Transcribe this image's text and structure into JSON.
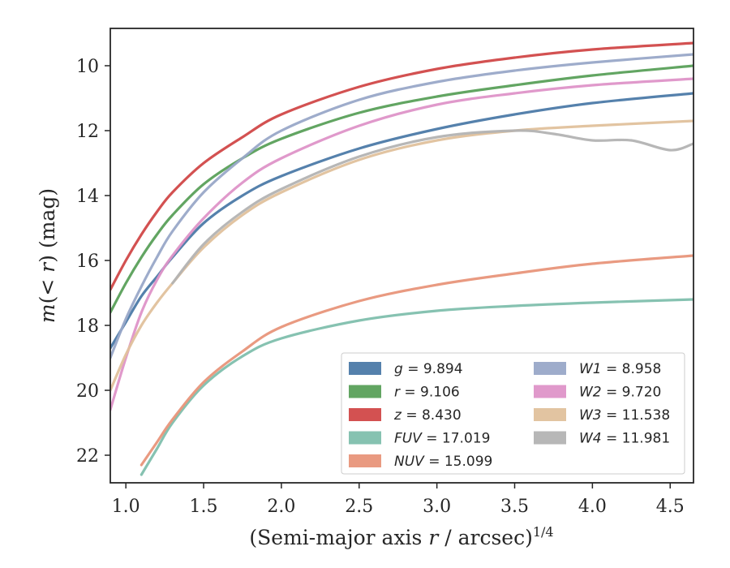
{
  "chart_data": {
    "type": "line",
    "xlabel": "(Semi-major axis r / arcsec)^1/4",
    "ylabel": "m(< r) (mag)",
    "xlim": [
      0.9,
      4.65
    ],
    "ylim": [
      22.85,
      8.85
    ],
    "y_inverted": true,
    "xticks": [
      "1.0",
      "1.5",
      "2.0",
      "2.5",
      "3.0",
      "3.5",
      "4.0",
      "4.5"
    ],
    "yticks": [
      "10",
      "12",
      "14",
      "16",
      "18",
      "20",
      "22"
    ],
    "grid": false,
    "legend_position": "lower-right",
    "series": [
      {
        "name": "g = 9.894",
        "color": "#4c7aa8",
        "x": [
          0.9,
          1.0,
          1.1,
          1.2,
          1.3,
          1.5,
          1.75,
          2.0,
          2.5,
          3.0,
          3.5,
          4.0,
          4.65
        ],
        "y": [
          18.7,
          17.9,
          17.1,
          16.5,
          15.9,
          14.85,
          14.0,
          13.4,
          12.55,
          11.95,
          11.5,
          11.15,
          10.85
        ]
      },
      {
        "name": "r = 9.106",
        "color": "#5aa05a",
        "x": [
          0.9,
          1.0,
          1.1,
          1.2,
          1.3,
          1.5,
          1.75,
          2.0,
          2.5,
          3.0,
          3.5,
          4.0,
          4.65
        ],
        "y": [
          17.6,
          16.7,
          15.9,
          15.2,
          14.6,
          13.65,
          12.85,
          12.25,
          11.45,
          10.95,
          10.6,
          10.3,
          10.0
        ]
      },
      {
        "name": "z = 8.430",
        "color": "#d14848",
        "x": [
          0.9,
          1.0,
          1.1,
          1.2,
          1.3,
          1.5,
          1.75,
          2.0,
          2.5,
          3.0,
          3.5,
          4.0,
          4.65
        ],
        "y": [
          16.9,
          16.0,
          15.2,
          14.5,
          13.9,
          13.0,
          12.2,
          11.5,
          10.65,
          10.1,
          9.75,
          9.5,
          9.3
        ]
      },
      {
        "name": "FUV = 17.019",
        "color": "#7fbfad",
        "x": [
          1.1,
          1.2,
          1.3,
          1.5,
          1.75,
          2.0,
          2.5,
          3.0,
          3.5,
          4.0,
          4.65
        ],
        "y": [
          22.6,
          21.8,
          21.0,
          19.85,
          18.95,
          18.4,
          17.85,
          17.55,
          17.4,
          17.3,
          17.2
        ]
      },
      {
        "name": "NUV = 15.099",
        "color": "#e8957a",
        "x": [
          1.1,
          1.2,
          1.3,
          1.5,
          1.75,
          2.0,
          2.5,
          3.0,
          3.5,
          4.0,
          4.65
        ],
        "y": [
          22.3,
          21.6,
          20.9,
          19.75,
          18.8,
          18.05,
          17.25,
          16.75,
          16.4,
          16.1,
          15.85
        ]
      },
      {
        "name": "W1 = 8.958",
        "color": "#99a8c8",
        "x": [
          0.9,
          1.0,
          1.1,
          1.2,
          1.3,
          1.5,
          1.75,
          2.0,
          2.5,
          3.0,
          3.5,
          4.0,
          4.65
        ],
        "y": [
          19.0,
          17.8,
          16.8,
          15.9,
          15.1,
          13.9,
          12.85,
          12.0,
          11.05,
          10.5,
          10.15,
          9.9,
          9.65
        ]
      },
      {
        "name": "W2 = 9.720",
        "color": "#de94c8",
        "x": [
          0.9,
          1.0,
          1.1,
          1.2,
          1.3,
          1.5,
          1.75,
          2.0,
          2.5,
          3.0,
          3.5,
          4.0,
          4.65
        ],
        "y": [
          20.6,
          19.0,
          17.6,
          16.6,
          15.85,
          14.7,
          13.6,
          12.85,
          11.85,
          11.2,
          10.85,
          10.6,
          10.4
        ]
      },
      {
        "name": "W3 = 11.538",
        "color": "#e0c19c",
        "x": [
          0.9,
          1.0,
          1.1,
          1.2,
          1.3,
          1.5,
          1.75,
          2.0,
          2.5,
          3.0,
          3.5,
          4.0,
          4.65
        ],
        "y": [
          20.0,
          18.9,
          18.0,
          17.3,
          16.7,
          15.6,
          14.6,
          13.9,
          12.9,
          12.3,
          12.0,
          11.85,
          11.7
        ]
      },
      {
        "name": "W4 = 11.981",
        "color": "#b3b3b3",
        "x": [
          1.3,
          1.5,
          1.75,
          2.0,
          2.5,
          3.0,
          3.5,
          3.75,
          4.0,
          4.25,
          4.5,
          4.65
        ],
        "y": [
          16.7,
          15.5,
          14.5,
          13.8,
          12.8,
          12.2,
          12.0,
          12.1,
          12.3,
          12.3,
          12.6,
          12.4
        ]
      }
    ]
  }
}
